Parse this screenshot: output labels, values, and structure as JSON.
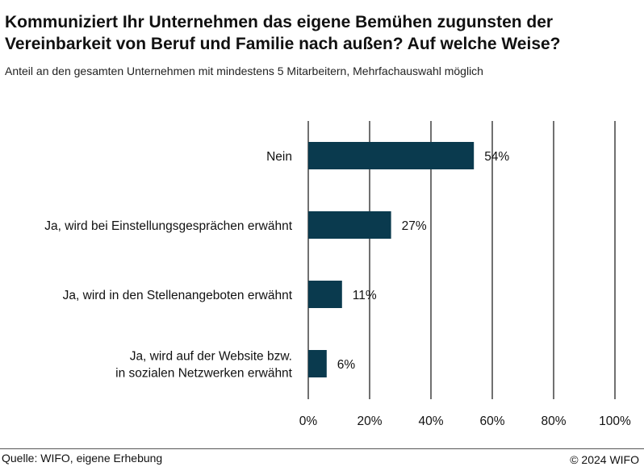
{
  "header": {
    "title": "Kommuniziert Ihr Unternehmen das eigene Bemühen zugunsten der Vereinbarkeit von Beruf und Familie nach außen? Auf welche Weise?",
    "subtitle": "Anteil an den gesamten Unternehmen mit mindestens 5 Mitarbeitern, Mehrfachauswahl möglich"
  },
  "footer": {
    "source": "Quelle: WIFO, eigene Erhebung",
    "copyright": "© 2024 WIFO"
  },
  "colors": {
    "bar": "#0a3a4e",
    "grid": "#111111"
  },
  "chart_data": {
    "type": "bar",
    "orientation": "horizontal",
    "categories": [
      [
        "Nein"
      ],
      [
        "Ja, wird bei Einstellungsgesprächen erwähnt"
      ],
      [
        "Ja, wird in den Stellenangeboten erwähnt"
      ],
      [
        "Ja, wird auf der Website bzw.",
        "in sozialen Netzwerken erwähnt"
      ]
    ],
    "values": [
      54,
      27,
      11,
      6
    ],
    "value_labels": [
      "54%",
      "27%",
      "11%",
      "6%"
    ],
    "xlim": [
      0,
      100
    ],
    "xticks": [
      0,
      20,
      40,
      60,
      80,
      100
    ],
    "xtick_labels": [
      "0%",
      "20%",
      "40%",
      "60%",
      "80%",
      "100%"
    ],
    "grid": "vertical",
    "legend": "none"
  }
}
